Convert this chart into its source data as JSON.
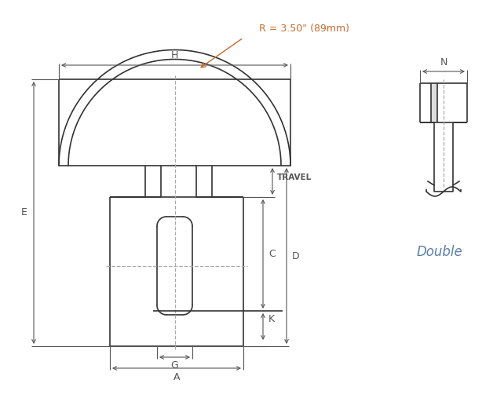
{
  "bg_color": "#ffffff",
  "line_color": "#333333",
  "dim_color": "#555555",
  "orange_color": "#c8692a",
  "blue_italic_color": "#5b7fa6",
  "radius_text": "R = 3.50\" (89mm)",
  "label_H": "H",
  "label_E": "E",
  "label_D": "D",
  "label_C": "C",
  "label_G": "G",
  "label_A": "A",
  "label_K": "K",
  "label_N": "N",
  "label_TRAVEL": "TRAVEL",
  "label_Double": "Double",
  "figsize": [
    6.42,
    5.21
  ],
  "dpi": 100
}
